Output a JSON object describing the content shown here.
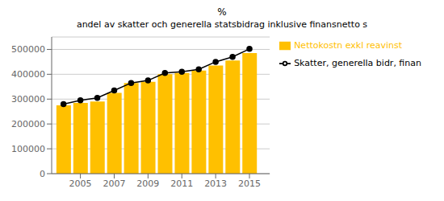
{
  "chart_data": {
    "type": "bar",
    "title": "%",
    "subtitle": "andel av skatter och generella statsbidrag inklusive finansnetto s",
    "x": [
      2004,
      2005,
      2006,
      2007,
      2008,
      2009,
      2010,
      2011,
      2012,
      2013,
      2014,
      2015
    ],
    "xlim": [
      2003.3,
      2016.2
    ],
    "xticks": [
      2005,
      2007,
      2009,
      2011,
      2013,
      2015
    ],
    "ylim": [
      0,
      550000
    ],
    "yticks": [
      0,
      100000,
      200000,
      300000,
      400000,
      500000
    ],
    "grid": "y",
    "legend": "right",
    "series": [
      {
        "name": "Nettokostn exkl reavinst",
        "type": "bar",
        "color": "#FFC000",
        "values": [
          275000,
          285000,
          290000,
          325000,
          365000,
          370000,
          400000,
          405000,
          415000,
          435000,
          455000,
          485000
        ]
      },
      {
        "name": "Skatter, generella bidr, finan",
        "type": "line",
        "color": "#000000",
        "marker": "circle",
        "values": [
          280000,
          295000,
          305000,
          335000,
          365000,
          375000,
          405000,
          410000,
          420000,
          450000,
          470000,
          502000
        ]
      }
    ]
  }
}
